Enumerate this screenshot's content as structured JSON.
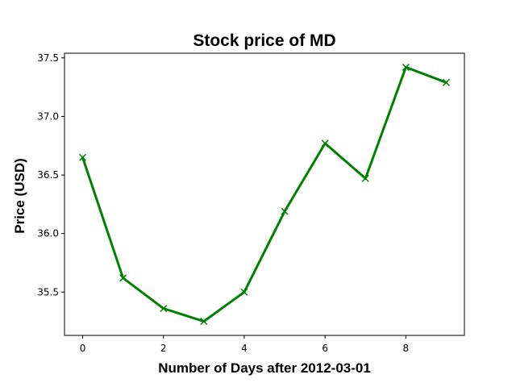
{
  "chart_data": {
    "type": "line",
    "title": "Stock price of MD",
    "xlabel": "Number of Days after 2012-03-01",
    "ylabel": "Price (USD)",
    "xlim": [
      -0.45,
      9.45
    ],
    "ylim": [
      35.13,
      37.54
    ],
    "x_ticks": [
      0,
      2,
      4,
      6,
      8
    ],
    "y_ticks": [
      35.5,
      36.0,
      36.5,
      37.0,
      37.5
    ],
    "grid": false,
    "legend": "none",
    "series": [
      {
        "color": "#008000",
        "marker": "x",
        "x": [
          0,
          1,
          2,
          3,
          4,
          5,
          6,
          7,
          8,
          9
        ],
        "y": [
          36.65,
          35.62,
          35.36,
          35.25,
          35.5,
          36.19,
          36.77,
          36.47,
          37.42,
          37.29
        ]
      }
    ]
  }
}
